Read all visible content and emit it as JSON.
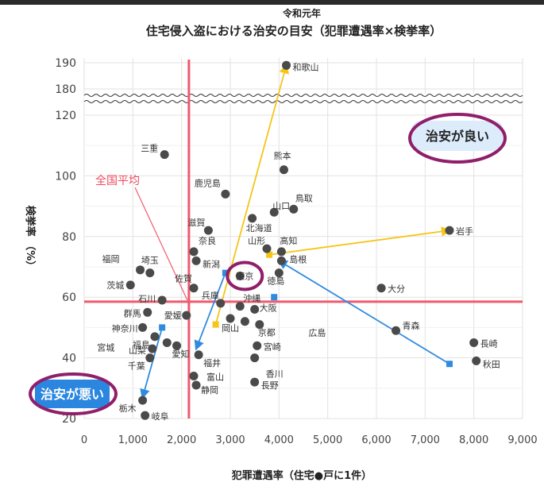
{
  "chart_data": {
    "type": "scatter",
    "year_label": "令和元年",
    "title": "住宅侵入盗における治安の目安（犯罪遭遇率×検挙率）",
    "xlabel": "犯罪遭遇率（住宅●戸に1件）",
    "ylabel": "検挙率\n（%）",
    "xlim": [
      0,
      9000
    ],
    "x_ticks": [
      "0",
      "1,000",
      "2,000",
      "3,000",
      "4,000",
      "5,000",
      "6,000",
      "7,000",
      "8,000",
      "9,000"
    ],
    "y_ticks_lower": [
      "20",
      "40",
      "60",
      "80",
      "100",
      "120"
    ],
    "y_ticks_upper": [
      "180",
      "190"
    ],
    "ylim_lower": [
      20,
      123
    ],
    "ylim_upper": [
      176,
      191
    ],
    "national_average": {
      "label": "全国平均",
      "x": 2150,
      "y": 58.5
    },
    "zones": {
      "good": "治安が良い",
      "bad": "治安が悪い"
    },
    "points": [
      {
        "label": "和歌山",
        "x": 4150,
        "y": 189
      },
      {
        "label": "三重",
        "x": 1650,
        "y": 107
      },
      {
        "label": "熊本",
        "x": 4100,
        "y": 102
      },
      {
        "label": "鹿児島",
        "x": 2900,
        "y": 94
      },
      {
        "label": "山口",
        "x": 3900,
        "y": 88
      },
      {
        "label": "鳥取",
        "x": 4300,
        "y": 89
      },
      {
        "label": "北海道",
        "x": 3450,
        "y": 86
      },
      {
        "label": "滋賀",
        "x": 2550,
        "y": 82
      },
      {
        "label": "岩手",
        "x": 7500,
        "y": 82
      },
      {
        "label": "山形",
        "x": 3750,
        "y": 76
      },
      {
        "label": "高知",
        "x": 4050,
        "y": 75
      },
      {
        "label": "奈良",
        "x": 2250,
        "y": 75
      },
      {
        "label": "新潟",
        "x": 2300,
        "y": 72
      },
      {
        "label": "島根",
        "x": 4050,
        "y": 72
      },
      {
        "label": "福岡",
        "x": 1150,
        "y": 69
      },
      {
        "label": "埼玉",
        "x": 1350,
        "y": 68
      },
      {
        "label": "東京",
        "x": 3200,
        "y": 67
      },
      {
        "label": "徳島",
        "x": 4000,
        "y": 68
      },
      {
        "label": "茨城",
        "x": 950,
        "y": 64
      },
      {
        "label": "佐賀",
        "x": 2250,
        "y": 63
      },
      {
        "label": "大分",
        "x": 6100,
        "y": 63
      },
      {
        "label": "石川",
        "x": 1600,
        "y": 59
      },
      {
        "label": "兵庫",
        "x": 2800,
        "y": 58
      },
      {
        "label": "沖縄",
        "x": 3200,
        "y": 57
      },
      {
        "label": "群馬",
        "x": 1300,
        "y": 55
      },
      {
        "label": "大阪",
        "x": 3500,
        "y": 56
      },
      {
        "label": "愛媛",
        "x": 2100,
        "y": 54
      },
      {
        "label": "岡山",
        "x": 3000,
        "y": 53
      },
      {
        "label": "神奈川",
        "x": 1200,
        "y": 50
      },
      {
        "label": "京都",
        "x": 3600,
        "y": 51
      },
      {
        "label": "広島",
        "x": 3300,
        "y": 52
      },
      {
        "label": "青森",
        "x": 6400,
        "y": 49
      },
      {
        "label": "福島",
        "x": 1450,
        "y": 47
      },
      {
        "label": "宮城",
        "x": 1700,
        "y": 45
      },
      {
        "label": "山梨",
        "x": 1400,
        "y": 43
      },
      {
        "label": "愛知",
        "x": 1900,
        "y": 44
      },
      {
        "label": "宮崎",
        "x": 3550,
        "y": 44
      },
      {
        "label": "長崎",
        "x": 8000,
        "y": 45
      },
      {
        "label": "千葉",
        "x": 1350,
        "y": 40
      },
      {
        "label": "福井",
        "x": 2350,
        "y": 41
      },
      {
        "label": "香川",
        "x": 3500,
        "y": 40
      },
      {
        "label": "秋田",
        "x": 8050,
        "y": 39
      },
      {
        "label": "富山",
        "x": 2250,
        "y": 34
      },
      {
        "label": "静岡",
        "x": 2300,
        "y": 31
      },
      {
        "label": "長野",
        "x": 3500,
        "y": 32
      },
      {
        "label": "栃木",
        "x": 1200,
        "y": 26
      },
      {
        "label": "岐阜",
        "x": 1250,
        "y": 21
      }
    ],
    "arrows": [
      {
        "color": "#f5c518",
        "from": [
          2700,
          51
        ],
        "to": [
          4150,
          189
        ]
      },
      {
        "color": "#f5c518",
        "from": [
          3800,
          74
        ],
        "to": [
          7500,
          82
        ]
      },
      {
        "color": "#2f8be0",
        "from": [
          2900,
          68
        ],
        "to": [
          2300,
          43
        ]
      },
      {
        "color": "#2f8be0",
        "from": [
          7500,
          38
        ],
        "to": [
          4000,
          72
        ]
      },
      {
        "color": "#2f8be0",
        "from": [
          1600,
          50
        ],
        "to": [
          1200,
          27
        ]
      }
    ],
    "arrow_markers": [
      {
        "color": "#f5c518",
        "x": 2700,
        "y": 51
      },
      {
        "color": "#f5c518",
        "x": 3800,
        "y": 74
      },
      {
        "color": "#2f8be0",
        "x": 2900,
        "y": 68
      },
      {
        "color": "#2f8be0",
        "x": 3900,
        "y": 60
      },
      {
        "color": "#2f8be0",
        "x": 7500,
        "y": 38
      },
      {
        "color": "#2f8be0",
        "x": 1600,
        "y": 50
      }
    ],
    "colors": {
      "point": "#4a4a4a",
      "average_line": "#ef5b6e",
      "average_label": "#ef4a5e",
      "good_zone": "#dcecfb",
      "bad_zone": "#2a86df",
      "circle_outline": "#8f1f6a",
      "grid": "#e2e2e2"
    },
    "highlighted": [
      "東京"
    ]
  }
}
